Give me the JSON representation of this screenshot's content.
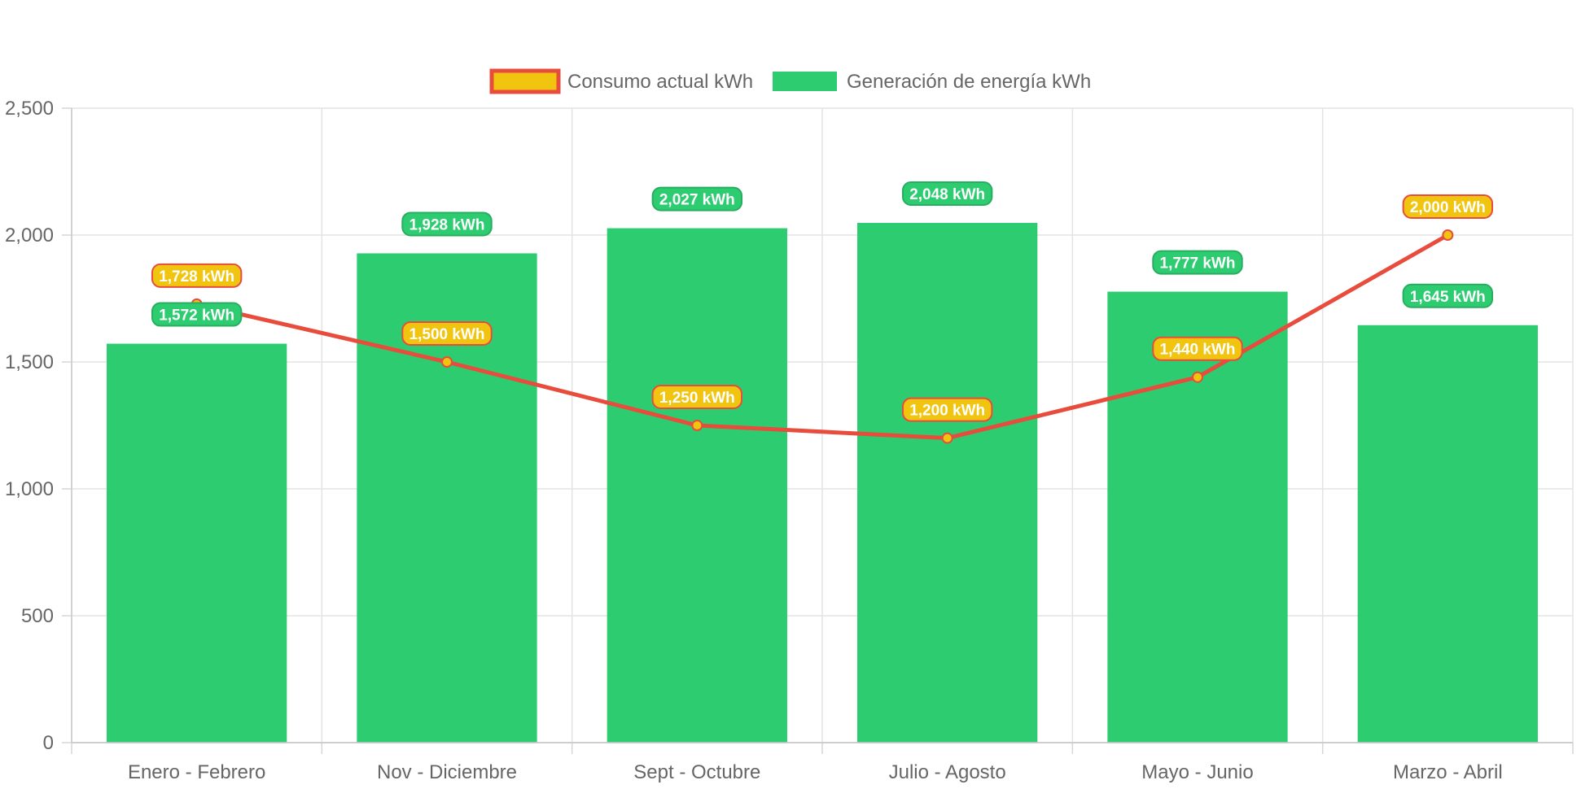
{
  "chart_data": {
    "type": "bar",
    "categories": [
      "Enero - Febrero",
      "Nov - Diciembre",
      "Sept - Octubre",
      "Julio - Agosto",
      "Mayo - Junio",
      "Marzo - Abril"
    ],
    "series": [
      {
        "name": "Consumo actual kWh",
        "type": "line",
        "values": [
          1728,
          1500,
          1250,
          1200,
          1440,
          2000
        ],
        "labels": [
          "1,728 kWh",
          "1,500 kWh",
          "1,250 kWh",
          "1,200 kWh",
          "1,440 kWh",
          "2,000 kWh"
        ],
        "color": "#e74c3c",
        "fill": "#f1c40f"
      },
      {
        "name": "Generación de energía kWh",
        "type": "bar",
        "values": [
          1572,
          1928,
          2027,
          2048,
          1777,
          1645
        ],
        "labels": [
          "1,572 kWh",
          "1,928 kWh",
          "2,027 kWh",
          "2,048 kWh",
          "1,777 kWh",
          "1,645 kWh"
        ],
        "color": "#2ecc71",
        "border": "#27ae60"
      }
    ],
    "yticks": [
      "0",
      "500",
      "1,000",
      "1,500",
      "2,000",
      "2,500"
    ],
    "ylim": [
      0,
      2500
    ],
    "grid": true,
    "legend": "top-center"
  }
}
